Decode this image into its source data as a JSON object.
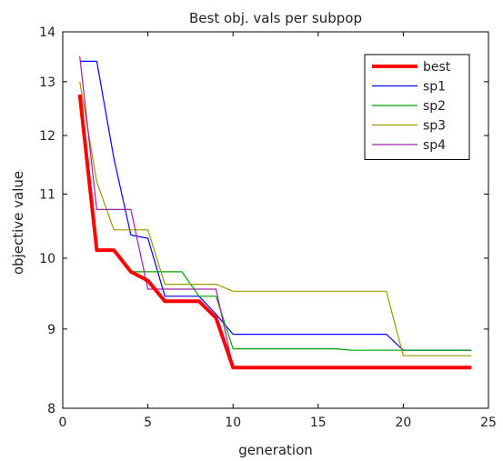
{
  "chart_data": {
    "type": "line",
    "title": "Best obj. vals per subpop",
    "xlabel": "generation",
    "ylabel": "objective value",
    "xlim": [
      0,
      25
    ],
    "ylim": [
      8,
      14
    ],
    "yscale": "log",
    "xticks": [
      0,
      5,
      10,
      15,
      20,
      25
    ],
    "yticks": [
      8,
      9,
      10,
      11,
      12,
      13,
      14
    ],
    "grid": false,
    "legend_position": "top-right",
    "series": [
      {
        "name": "best",
        "color": "#ff0000",
        "x": [
          1,
          2,
          3,
          4,
          5,
          6,
          7,
          8,
          9,
          10,
          11,
          12,
          13,
          14,
          15,
          16,
          17,
          18,
          19,
          20,
          21,
          22,
          23,
          24
        ],
        "y": [
          12.75,
          10.12,
          10.12,
          9.8,
          9.67,
          9.38,
          9.38,
          9.38,
          9.15,
          8.5,
          8.5,
          8.5,
          8.5,
          8.5,
          8.5,
          8.5,
          8.5,
          8.5,
          8.5,
          8.5,
          8.5,
          8.5,
          8.5,
          8.5
        ]
      },
      {
        "name": "sp1",
        "color": "#0000ff",
        "x": [
          1,
          2,
          3,
          4,
          5,
          6,
          7,
          8,
          9,
          10,
          11,
          12,
          13,
          14,
          15,
          16,
          17,
          18,
          19,
          20,
          21,
          22,
          23,
          24
        ],
        "y": [
          13.4,
          13.4,
          11.6,
          10.35,
          10.3,
          9.45,
          9.45,
          9.45,
          9.2,
          8.93,
          8.93,
          8.93,
          8.93,
          8.93,
          8.93,
          8.93,
          8.93,
          8.93,
          8.93,
          8.72,
          8.72,
          8.72,
          8.72,
          8.72
        ]
      },
      {
        "name": "sp2",
        "color": "#00a000",
        "x": [
          1,
          2,
          3,
          4,
          5,
          6,
          7,
          8,
          9,
          10,
          11,
          12,
          13,
          14,
          15,
          16,
          17,
          18,
          19,
          20,
          21,
          22,
          23,
          24
        ],
        "y": [
          12.6,
          10.12,
          10.12,
          9.8,
          9.8,
          9.8,
          9.8,
          9.45,
          9.45,
          8.74,
          8.74,
          8.74,
          8.74,
          8.74,
          8.74,
          8.74,
          8.72,
          8.72,
          8.72,
          8.72,
          8.72,
          8.72,
          8.72,
          8.72
        ]
      },
      {
        "name": "sp3",
        "color": "#999900",
        "x": [
          1,
          2,
          3,
          4,
          5,
          6,
          7,
          8,
          9,
          10,
          11,
          12,
          13,
          14,
          15,
          16,
          17,
          18,
          19,
          20,
          21,
          22,
          23,
          24
        ],
        "y": [
          13.0,
          11.2,
          10.43,
          10.43,
          10.43,
          9.62,
          9.62,
          9.62,
          9.62,
          9.52,
          9.52,
          9.52,
          9.52,
          9.52,
          9.52,
          9.52,
          9.52,
          9.52,
          9.52,
          8.65,
          8.65,
          8.65,
          8.65,
          8.65
        ]
      },
      {
        "name": "sp4",
        "color": "#a020a0",
        "x": [
          1,
          2,
          3,
          4,
          5,
          6,
          7,
          8,
          9,
          10,
          11,
          12,
          13,
          14,
          15,
          16,
          17,
          18,
          19,
          20,
          21,
          22,
          23,
          24
        ],
        "y": [
          13.5,
          10.75,
          10.75,
          10.75,
          9.55,
          9.55,
          9.55,
          9.55,
          9.55,
          8.5,
          8.5,
          8.5,
          8.5,
          8.5,
          8.5,
          8.5,
          8.5,
          8.5,
          8.5,
          8.5,
          8.5,
          8.5,
          8.5,
          8.5
        ]
      }
    ]
  }
}
